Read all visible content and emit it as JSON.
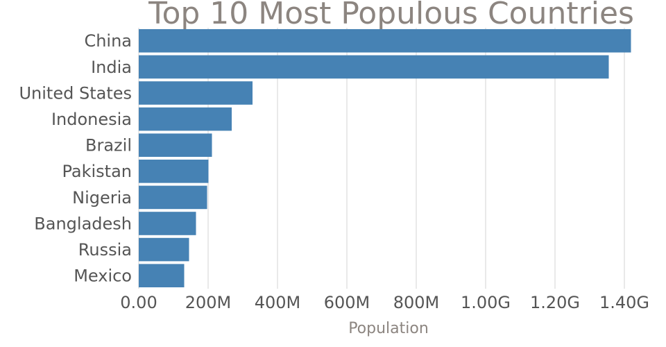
{
  "chart_data": {
    "type": "bar",
    "orientation": "horizontal",
    "title": "Top 10 Most Populous Countries",
    "xlabel": "Population",
    "ylabel": "",
    "categories": [
      "China",
      "India",
      "United States",
      "Indonesia",
      "Brazil",
      "Pakistan",
      "Nigeria",
      "Bangladesh",
      "Russia",
      "Mexico"
    ],
    "values": [
      1419000000,
      1355000000,
      328000000,
      268000000,
      211000000,
      201000000,
      197000000,
      165000000,
      145000000,
      131000000
    ],
    "xlim": [
      0,
      1480000000
    ],
    "xticks": [
      0,
      200000000,
      400000000,
      600000000,
      800000000,
      1000000000,
      1200000000,
      1400000000
    ],
    "xtick_labels": [
      "0.00",
      "200M",
      "400M",
      "600M",
      "800M",
      "1.00G",
      "1.20G",
      "1.40G"
    ],
    "grid": "vertical",
    "bar_color": "#4682b4",
    "title_color": "#8c8580",
    "grid_color": "#d3d3d3",
    "label_color": "#555555"
  }
}
